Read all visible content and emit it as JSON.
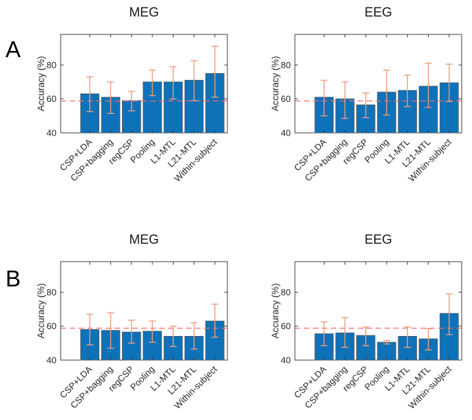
{
  "panel_labels": {
    "a": "A",
    "b": "B"
  },
  "colors": {
    "bar_fill": "#0e72b9",
    "bar_edge": "#4f5d6d",
    "error_bar": "#f09c7c",
    "baseline_line": "#f16a6a",
    "axis": "#3b3b3b"
  },
  "chart_data": [
    {
      "panel": "A",
      "type": "bar",
      "title": "MEG",
      "ylabel": "Accuracy (%)",
      "categories": [
        "CSP+LDA",
        "CSP+bagging",
        "regCSP",
        "Pooling",
        "L1-MTL",
        "L21-MTL",
        "Within-subject"
      ],
      "values": [
        63,
        61,
        59,
        70,
        70,
        71,
        75
      ],
      "err_low": [
        52.5,
        51.5,
        53,
        62,
        60,
        59,
        61
      ],
      "err_high": [
        73,
        70,
        64.5,
        77,
        79,
        82.5,
        91
      ],
      "baseline": 58.8,
      "yticks": [
        40,
        60,
        80
      ],
      "ylim": [
        40,
        98
      ],
      "grid": false,
      "legend": null
    },
    {
      "panel": "A",
      "type": "bar",
      "title": "EEG",
      "ylabel": "Accuracy (%)",
      "categories": [
        "CSP+LDA",
        "CSP+bagging",
        "regCSP",
        "Pooling",
        "L1-MTL",
        "L21-MTL",
        "Within-subject"
      ],
      "values": [
        61,
        60,
        56.5,
        64,
        65,
        67.5,
        69.5
      ],
      "err_low": [
        50,
        48.5,
        49,
        50.5,
        55.5,
        55,
        58.5
      ],
      "err_high": [
        71,
        70,
        63.5,
        77,
        74,
        81,
        80.5
      ],
      "baseline": 58.8,
      "yticks": [
        40,
        60,
        80
      ],
      "ylim": [
        40,
        98
      ],
      "grid": false,
      "legend": null
    },
    {
      "panel": "B",
      "type": "bar",
      "title": "MEG",
      "ylabel": "Accuracy (%)",
      "categories": [
        "CSP+LDA",
        "CSP+bagging",
        "regCSP",
        "Pooling",
        "L1-MTL",
        "L21-MTL",
        "Within-subject"
      ],
      "values": [
        58,
        57.5,
        56.5,
        57,
        54,
        54,
        63
      ],
      "err_low": [
        49,
        47,
        50,
        50.5,
        48,
        46.5,
        53.5
      ],
      "err_high": [
        67,
        68,
        63.5,
        63,
        60,
        62,
        73
      ],
      "baseline": 58.8,
      "yticks": [
        40,
        60,
        80
      ],
      "ylim": [
        40,
        98
      ],
      "grid": false,
      "legend": null
    },
    {
      "panel": "B",
      "type": "bar",
      "title": "EEG",
      "ylabel": "Accuracy (%)",
      "categories": [
        "CSP+LDA",
        "CSP+bagging",
        "regCSP",
        "Pooling",
        "L1-MTL",
        "L21-MTL",
        "Within-subject"
      ],
      "values": [
        55.5,
        56,
        54.5,
        50.5,
        54,
        52.5,
        67.5
      ],
      "err_low": [
        48.5,
        47.5,
        48.5,
        49.5,
        47.5,
        46,
        55
      ],
      "err_high": [
        62.5,
        65,
        59.5,
        51.5,
        59.5,
        58.5,
        79
      ],
      "baseline": 58.8,
      "yticks": [
        40,
        60,
        80
      ],
      "ylim": [
        40,
        98
      ],
      "grid": false,
      "legend": null
    }
  ]
}
